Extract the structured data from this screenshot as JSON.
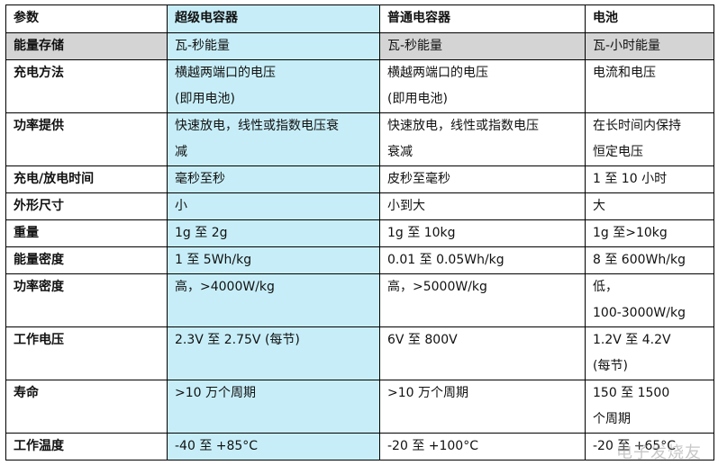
{
  "headers": [
    "参数",
    "超级电容器",
    "普通电容器",
    "电池"
  ],
  "rows": [
    {
      "param": "能量存储",
      "super": [
        "瓦-秒能量"
      ],
      "normal": [
        "瓦-秒能量"
      ],
      "battery": [
        "瓦-小时能量"
      ]
    },
    {
      "param": "充电方法",
      "super": [
        "横越两端口的电压",
        "(即用电池)"
      ],
      "normal": [
        "横越两端口的电压",
        "(即用电池)"
      ],
      "battery": [
        "电流和电压"
      ]
    },
    {
      "param": "功率提供",
      "super": [
        "快速放电，线性或指数电压衰",
        "减"
      ],
      "normal": [
        "快速放电，线性或指数电压",
        "衰减"
      ],
      "battery": [
        "在长时间内保持",
        "恒定电压"
      ]
    },
    {
      "param": "充电/放电时间",
      "super": [
        "毫秒至秒"
      ],
      "normal": [
        "皮秒至毫秒"
      ],
      "battery": [
        "1  至  10  小时"
      ]
    },
    {
      "param": "外形尺寸",
      "super": [
        "小"
      ],
      "normal": [
        "小到大"
      ],
      "battery": [
        "大"
      ]
    },
    {
      "param": "重量",
      "super": [
        "1g  至  2g"
      ],
      "normal": [
        "1g  至  10kg"
      ],
      "battery": [
        "1g  至>10kg"
      ]
    },
    {
      "param": "能量密度",
      "super": [
        "1  至  5Wh/kg"
      ],
      "normal": [
        "0.01  至  0.05Wh/kg"
      ],
      "battery": [
        "8  至  600Wh/kg"
      ]
    },
    {
      "param": "功率密度",
      "super": [
        "高，>4000W/kg"
      ],
      "normal": [
        "高，>5000W/kg"
      ],
      "battery": [
        "低，",
        "100-3000W/kg"
      ]
    },
    {
      "param": "工作电压",
      "super": [
        "2.3V  至  2.75V (每节)"
      ],
      "normal": [
        "6V  至  800V"
      ],
      "battery": [
        "1.2V  至  4.2V",
        "(每节)"
      ]
    },
    {
      "param": "寿命",
      "super": [
        ">10  万个周期"
      ],
      "normal": [
        ">10  万个周期"
      ],
      "battery": [
        "150  至  1500",
        "个周期"
      ]
    },
    {
      "param": "工作温度",
      "super": [
        "-40  至  +85°C"
      ],
      "normal": [
        "-20  至  +100°C"
      ],
      "battery": [
        "-20  至  +65°C"
      ]
    }
  ],
  "watermark": "电子发烧友",
  "colors": {
    "super_column_bg": "#c7eef8",
    "grey_row_bg": "#d4d4d4",
    "border": "#000000"
  }
}
